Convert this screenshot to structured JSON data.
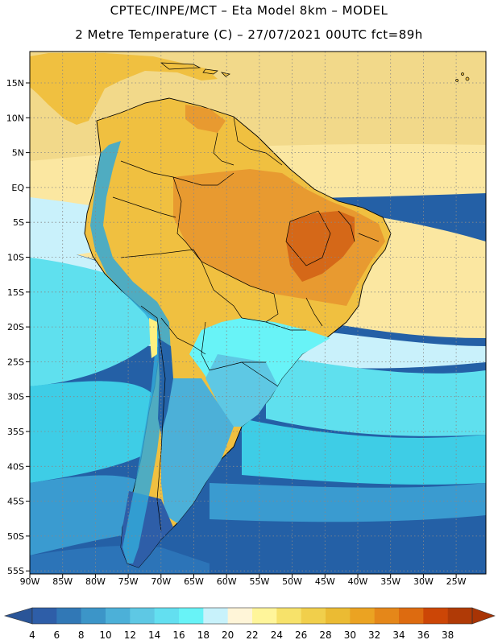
{
  "header": {
    "line1": "CPTEC/INPE/MCT –  Eta Model 8km – MODEL",
    "line2": "2 Metre Temperature (C) – 27/07/2021 00UTC fct=89h"
  },
  "map": {
    "lat_labels": [
      "15N",
      "10N",
      "5N",
      "EQ",
      "5S",
      "10S",
      "15S",
      "20S",
      "25S",
      "30S",
      "35S",
      "40S",
      "45S",
      "50S",
      "55S"
    ],
    "lon_labels": [
      "90W",
      "85W",
      "80W",
      "75W",
      "70W",
      "65W",
      "60W",
      "55W",
      "50W",
      "45W",
      "40W",
      "35W",
      "30W",
      "25W"
    ],
    "land_colors": [
      "#f0c040",
      "#e89a30",
      "#d56818",
      "#fff080",
      "#d4f4fa",
      "#33a8d8",
      "#2463a8"
    ],
    "ocean_colors": [
      "#fbe7a1",
      "#f2d98a",
      "#c9f1fb",
      "#5fe0ee",
      "#3ecde6",
      "#3a9bd0",
      "#2c74b8",
      "#2460a6"
    ]
  },
  "colorbar": {
    "labels": [
      "4",
      "6",
      "8",
      "10",
      "12",
      "14",
      "16",
      "18",
      "20",
      "22",
      "24",
      "26",
      "28",
      "30",
      "32",
      "34",
      "36",
      "38"
    ],
    "colors": [
      "#2e5ea8",
      "#3178b6",
      "#3c95c8",
      "#4cb0d8",
      "#5ec8e4",
      "#63dff0",
      "#68f3f7",
      "#c8f2fb",
      "#fff5d8",
      "#fff59a",
      "#f7e26a",
      "#f1cf4b",
      "#ebbb33",
      "#eba322",
      "#e58719",
      "#dd6b10",
      "#cc4606",
      "#b03a06"
    ],
    "left_cap_color": "#2a5598",
    "right_cap_color": "#a83405"
  }
}
